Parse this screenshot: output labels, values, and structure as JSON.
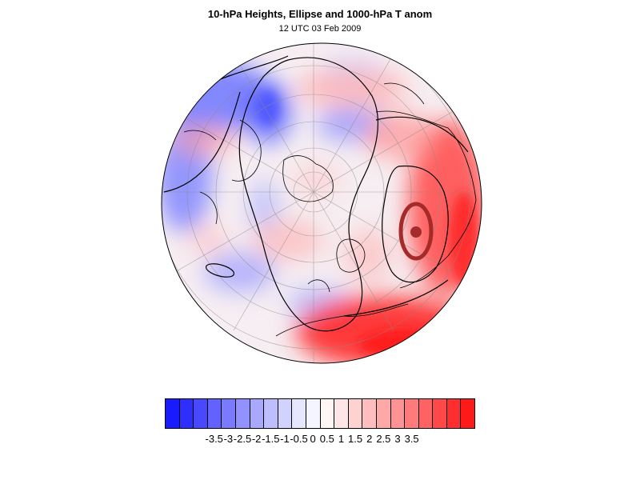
{
  "title": "10-hPa Heights, Ellipse and 1000-hPa T anom",
  "subtitle": "12 UTC 03 Feb 2009",
  "map": {
    "projection": "orthographic-north-polar",
    "contour_color": "#000000",
    "ellipse_color": "#a52a2a",
    "coast_color": "#000000",
    "grid_color": "#888888"
  },
  "colorbar": {
    "colors": [
      "#1a1aff",
      "#2e2eff",
      "#4848ff",
      "#6262ff",
      "#7a7aff",
      "#9292ff",
      "#a8a8ff",
      "#bebefe",
      "#d2d2fe",
      "#e6e6ff",
      "#f5f5ff",
      "#fff5f5",
      "#ffe6e6",
      "#ffd2d2",
      "#ffbebe",
      "#ffa8a8",
      "#ff9292",
      "#ff7a7a",
      "#ff6262",
      "#ff4848",
      "#ff2e2e",
      "#ff1a1a"
    ],
    "labels": [
      "-3.5",
      "-3",
      "-2.5",
      "-2",
      "-1.5",
      "-1",
      "-0.5",
      "0",
      "0.5",
      "1",
      "1.5",
      "2",
      "2.5",
      "3",
      "3.5"
    ]
  }
}
